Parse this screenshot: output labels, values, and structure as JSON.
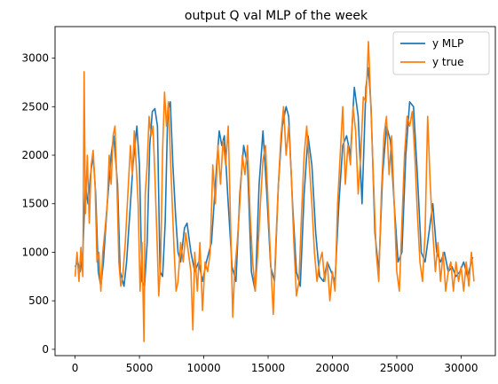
{
  "chart_data": {
    "type": "line",
    "title": "output Q val MLP of the week",
    "xlabel": "",
    "ylabel": "",
    "xlim": [
      -1560,
      32660
    ],
    "ylim": [
      -65,
      3325
    ],
    "x_ticks": [
      0,
      5000,
      10000,
      15000,
      20000,
      25000,
      30000
    ],
    "y_ticks": [
      0,
      500,
      1000,
      1500,
      2000,
      2500,
      3000
    ],
    "grid": false,
    "legend_position": "upper right",
    "series": [
      {
        "name": "y MLP",
        "color": "#1f77b4",
        "points": [
          [
            0,
            850
          ],
          [
            200,
            900
          ],
          [
            400,
            800
          ],
          [
            600,
            1000
          ],
          [
            800,
            1700
          ],
          [
            1000,
            1500
          ],
          [
            1200,
            1800
          ],
          [
            1400,
            2000
          ],
          [
            1600,
            1600
          ],
          [
            1800,
            800
          ],
          [
            2000,
            650
          ],
          [
            2200,
            900
          ],
          [
            2500,
            1500
          ],
          [
            2800,
            2000
          ],
          [
            3000,
            2200
          ],
          [
            3300,
            1700
          ],
          [
            3500,
            800
          ],
          [
            3800,
            650
          ],
          [
            4000,
            900
          ],
          [
            4200,
            1300
          ],
          [
            4500,
            1900
          ],
          [
            4800,
            2300
          ],
          [
            5000,
            1900
          ],
          [
            5200,
            700
          ],
          [
            5400,
            650
          ],
          [
            5600,
            1100
          ],
          [
            5800,
            2100
          ],
          [
            6000,
            2450
          ],
          [
            6200,
            2480
          ],
          [
            6400,
            2300
          ],
          [
            6600,
            800
          ],
          [
            6800,
            750
          ],
          [
            7000,
            1300
          ],
          [
            7200,
            2450
          ],
          [
            7400,
            2550
          ],
          [
            7600,
            1900
          ],
          [
            7800,
            1400
          ],
          [
            8000,
            1000
          ],
          [
            8200,
            900
          ],
          [
            8500,
            1250
          ],
          [
            8700,
            1300
          ],
          [
            9000,
            1000
          ],
          [
            9300,
            800
          ],
          [
            9600,
            900
          ],
          [
            9900,
            700
          ],
          [
            10200,
            900
          ],
          [
            10600,
            1100
          ],
          [
            11000,
            1900
          ],
          [
            11200,
            2250
          ],
          [
            11400,
            2100
          ],
          [
            11600,
            2200
          ],
          [
            11900,
            1500
          ],
          [
            12200,
            850
          ],
          [
            12500,
            700
          ],
          [
            12800,
            1600
          ],
          [
            13100,
            2100
          ],
          [
            13400,
            1900
          ],
          [
            13700,
            800
          ],
          [
            14000,
            600
          ],
          [
            14300,
            1700
          ],
          [
            14600,
            2250
          ],
          [
            14900,
            1600
          ],
          [
            15200,
            850
          ],
          [
            15500,
            700
          ],
          [
            15800,
            1700
          ],
          [
            16100,
            2300
          ],
          [
            16400,
            2500
          ],
          [
            16600,
            2400
          ],
          [
            16900,
            1500
          ],
          [
            17200,
            800
          ],
          [
            17500,
            650
          ],
          [
            17800,
            1600
          ],
          [
            18100,
            2200
          ],
          [
            18400,
            1900
          ],
          [
            18700,
            1200
          ],
          [
            19000,
            750
          ],
          [
            19300,
            700
          ],
          [
            19600,
            900
          ],
          [
            19900,
            800
          ],
          [
            20200,
            700
          ],
          [
            20500,
            1500
          ],
          [
            20800,
            2100
          ],
          [
            21100,
            2200
          ],
          [
            21400,
            2000
          ],
          [
            21700,
            2700
          ],
          [
            22000,
            2400
          ],
          [
            22300,
            1500
          ],
          [
            22600,
            2700
          ],
          [
            22800,
            2900
          ],
          [
            23000,
            2500
          ],
          [
            23300,
            1200
          ],
          [
            23600,
            800
          ],
          [
            23900,
            1800
          ],
          [
            24200,
            2300
          ],
          [
            24500,
            2150
          ],
          [
            24800,
            1500
          ],
          [
            25100,
            900
          ],
          [
            25400,
            1000
          ],
          [
            25700,
            2000
          ],
          [
            26000,
            2550
          ],
          [
            26300,
            2500
          ],
          [
            26600,
            1800
          ],
          [
            26900,
            1000
          ],
          [
            27200,
            900
          ],
          [
            27500,
            1200
          ],
          [
            27800,
            1500
          ],
          [
            28100,
            1000
          ],
          [
            28400,
            900
          ],
          [
            28700,
            1000
          ],
          [
            29000,
            800
          ],
          [
            29300,
            850
          ],
          [
            29600,
            750
          ],
          [
            29900,
            800
          ],
          [
            30200,
            900
          ],
          [
            30500,
            750
          ],
          [
            30900,
            950
          ]
        ]
      },
      {
        "name": "y true",
        "color": "#ff7f0e",
        "points": [
          [
            0,
            750
          ],
          [
            150,
            1000
          ],
          [
            300,
            700
          ],
          [
            450,
            1050
          ],
          [
            600,
            750
          ],
          [
            700,
            2860
          ],
          [
            800,
            1400
          ],
          [
            950,
            2000
          ],
          [
            1100,
            1300
          ],
          [
            1250,
            1900
          ],
          [
            1400,
            2050
          ],
          [
            1550,
            1700
          ],
          [
            1700,
            900
          ],
          [
            1850,
            1000
          ],
          [
            2000,
            600
          ],
          [
            2150,
            1000
          ],
          [
            2300,
            1200
          ],
          [
            2500,
            1500
          ],
          [
            2650,
            2000
          ],
          [
            2800,
            1700
          ],
          [
            2950,
            2200
          ],
          [
            3100,
            2300
          ],
          [
            3250,
            1700
          ],
          [
            3400,
            900
          ],
          [
            3550,
            650
          ],
          [
            3700,
            750
          ],
          [
            3900,
            1100
          ],
          [
            4100,
            1600
          ],
          [
            4300,
            2100
          ],
          [
            4450,
            1800
          ],
          [
            4600,
            2250
          ],
          [
            4750,
            1900
          ],
          [
            4900,
            1500
          ],
          [
            5050,
            600
          ],
          [
            5200,
            1100
          ],
          [
            5350,
            80
          ],
          [
            5450,
            1600
          ],
          [
            5600,
            1900
          ],
          [
            5750,
            2400
          ],
          [
            5900,
            2200
          ],
          [
            6050,
            2300
          ],
          [
            6200,
            1800
          ],
          [
            6350,
            1200
          ],
          [
            6500,
            550
          ],
          [
            6650,
            900
          ],
          [
            6800,
            2050
          ],
          [
            6950,
            2650
          ],
          [
            7100,
            2300
          ],
          [
            7250,
            2550
          ],
          [
            7400,
            2000
          ],
          [
            7550,
            1500
          ],
          [
            7700,
            1000
          ],
          [
            7850,
            600
          ],
          [
            8000,
            700
          ],
          [
            8200,
            1100
          ],
          [
            8400,
            900
          ],
          [
            8600,
            1200
          ],
          [
            8800,
            1000
          ],
          [
            9000,
            800
          ],
          [
            9150,
            200
          ],
          [
            9300,
            1000
          ],
          [
            9500,
            600
          ],
          [
            9700,
            1100
          ],
          [
            9900,
            400
          ],
          [
            10100,
            900
          ],
          [
            10300,
            800
          ],
          [
            10500,
            1000
          ],
          [
            10700,
            1900
          ],
          [
            10900,
            1500
          ],
          [
            11100,
            2100
          ],
          [
            11300,
            1700
          ],
          [
            11500,
            2150
          ],
          [
            11700,
            1900
          ],
          [
            11900,
            2300
          ],
          [
            12100,
            1200
          ],
          [
            12250,
            330
          ],
          [
            12400,
            800
          ],
          [
            12600,
            1100
          ],
          [
            12800,
            1500
          ],
          [
            13000,
            2000
          ],
          [
            13200,
            1800
          ],
          [
            13400,
            2100
          ],
          [
            13600,
            1400
          ],
          [
            13800,
            900
          ],
          [
            14000,
            600
          ],
          [
            14200,
            1000
          ],
          [
            14400,
            1500
          ],
          [
            14600,
            1950
          ],
          [
            14800,
            2100
          ],
          [
            15000,
            1500
          ],
          [
            15200,
            900
          ],
          [
            15400,
            360
          ],
          [
            15600,
            1100
          ],
          [
            15800,
            1700
          ],
          [
            16000,
            2200
          ],
          [
            16200,
            2500
          ],
          [
            16400,
            2000
          ],
          [
            16600,
            2300
          ],
          [
            16800,
            1800
          ],
          [
            17000,
            1100
          ],
          [
            17200,
            550
          ],
          [
            17400,
            700
          ],
          [
            17600,
            1400
          ],
          [
            17800,
            2000
          ],
          [
            18000,
            2300
          ],
          [
            18200,
            1900
          ],
          [
            18400,
            1500
          ],
          [
            18600,
            1000
          ],
          [
            18800,
            700
          ],
          [
            19000,
            900
          ],
          [
            19200,
            1000
          ],
          [
            19400,
            700
          ],
          [
            19600,
            900
          ],
          [
            19800,
            500
          ],
          [
            20000,
            800
          ],
          [
            20200,
            600
          ],
          [
            20400,
            1500
          ],
          [
            20600,
            2000
          ],
          [
            20800,
            2500
          ],
          [
            21000,
            1700
          ],
          [
            21200,
            2100
          ],
          [
            21400,
            1900
          ],
          [
            21600,
            2500
          ],
          [
            21800,
            2250
          ],
          [
            22000,
            1600
          ],
          [
            22200,
            2000
          ],
          [
            22400,
            2600
          ],
          [
            22600,
            2550
          ],
          [
            22800,
            3170
          ],
          [
            23000,
            2450
          ],
          [
            23200,
            1700
          ],
          [
            23400,
            1000
          ],
          [
            23600,
            700
          ],
          [
            23800,
            1600
          ],
          [
            24000,
            2200
          ],
          [
            24200,
            2400
          ],
          [
            24400,
            1800
          ],
          [
            24600,
            2200
          ],
          [
            24800,
            1500
          ],
          [
            25000,
            800
          ],
          [
            25200,
            600
          ],
          [
            25400,
            1300
          ],
          [
            25600,
            2000
          ],
          [
            25800,
            2400
          ],
          [
            26000,
            2300
          ],
          [
            26200,
            2450
          ],
          [
            26400,
            2000
          ],
          [
            26600,
            1400
          ],
          [
            26800,
            900
          ],
          [
            27000,
            700
          ],
          [
            27200,
            1200
          ],
          [
            27400,
            2400
          ],
          [
            27600,
            1700
          ],
          [
            27800,
            1200
          ],
          [
            28000,
            800
          ],
          [
            28200,
            1100
          ],
          [
            28400,
            700
          ],
          [
            28600,
            1000
          ],
          [
            28800,
            600
          ],
          [
            29000,
            800
          ],
          [
            29200,
            900
          ],
          [
            29400,
            600
          ],
          [
            29600,
            900
          ],
          [
            29800,
            700
          ],
          [
            30000,
            850
          ],
          [
            30200,
            600
          ],
          [
            30400,
            900
          ],
          [
            30600,
            650
          ],
          [
            30800,
            1000
          ],
          [
            31000,
            700
          ]
        ]
      }
    ]
  }
}
